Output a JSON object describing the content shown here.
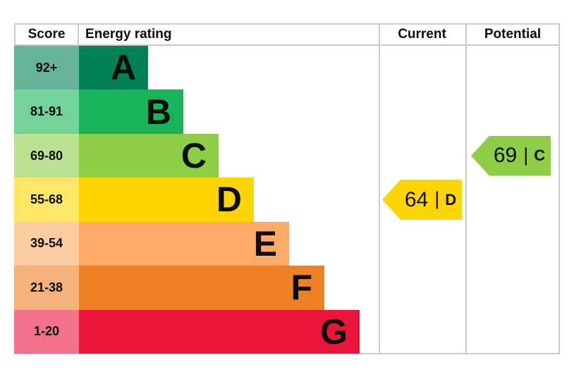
{
  "header": {
    "score": "Score",
    "energy_rating": "Energy rating",
    "current": "Current",
    "potential": "Potential"
  },
  "chart_data": {
    "type": "bar",
    "title": "Energy efficiency rating chart (EPC)",
    "bands": [
      {
        "score": "92+",
        "letter": "A",
        "color": "#008054",
        "tint": "#66b398"
      },
      {
        "score": "81-91",
        "letter": "B",
        "color": "#19b459",
        "tint": "#75d29b"
      },
      {
        "score": "69-80",
        "letter": "C",
        "color": "#8dce46",
        "tint": "#bbe290"
      },
      {
        "score": "55-68",
        "letter": "D",
        "color": "#ffd500",
        "tint": "#ffe666"
      },
      {
        "score": "39-54",
        "letter": "E",
        "color": "#fcaa65",
        "tint": "#fdcca3"
      },
      {
        "score": "21-38",
        "letter": "F",
        "color": "#ef8023",
        "tint": "#f5b37b"
      },
      {
        "score": "1-20",
        "letter": "G",
        "color": "#e9153b",
        "tint": "#f27389"
      }
    ],
    "current": {
      "value": 64,
      "separator": "|",
      "band": "D",
      "color": "#ffd500"
    },
    "potential": {
      "value": 69,
      "separator": "|",
      "band": "C",
      "color": "#8dce46"
    }
  }
}
